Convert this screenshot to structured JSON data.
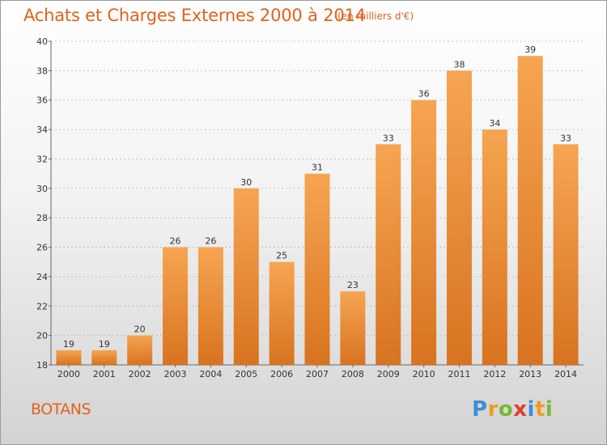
{
  "header": {
    "title": "Achats et Charges Externes 2000 à 2014",
    "subtitle": "(en milliers d'€)"
  },
  "footer": {
    "commune": "BOTANS",
    "logo_letters": [
      "P",
      "r",
      "o",
      "x",
      "i",
      "t",
      "i"
    ],
    "logo_colors": [
      "#3b8fd9",
      "#f39a1d",
      "#7ab833",
      "#e23a2b",
      "#3b8fd9",
      "#f39a1d",
      "#7ab833"
    ]
  },
  "colors": {
    "accent": "#e2621b",
    "bar_top": "#f6a552",
    "bar_bottom": "#d8731f",
    "grid": "#bbbbbb",
    "axis_text": "#333333"
  },
  "chart_data": {
    "type": "bar",
    "title": "Achats et Charges Externes 2000 à 2014",
    "subtitle": "(en milliers d'€)",
    "categories": [
      "2000",
      "2001",
      "2002",
      "2003",
      "2004",
      "2005",
      "2006",
      "2007",
      "2008",
      "2009",
      "2010",
      "2011",
      "2012",
      "2013",
      "2014"
    ],
    "values": [
      19,
      19,
      20,
      26,
      26,
      30,
      25,
      31,
      23,
      33,
      36,
      38,
      34,
      39,
      33
    ],
    "ylim": [
      18,
      40
    ],
    "yticks": [
      18,
      20,
      22,
      24,
      26,
      28,
      30,
      32,
      34,
      36,
      38,
      40
    ],
    "grid": true,
    "data_labels": true
  }
}
